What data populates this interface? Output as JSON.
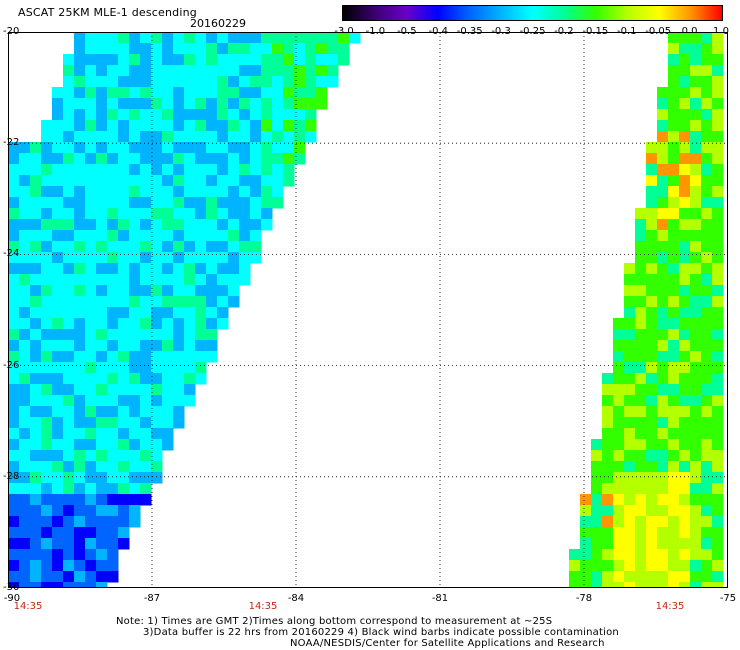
{
  "header": {
    "title": "ASCAT 25KM MLE-1 descending",
    "date": "20160229"
  },
  "colorbar": {
    "labels": [
      "-3.0",
      "-1.0",
      "-0.5",
      "-0.4",
      "-0.35",
      "-0.3",
      "-0.25",
      "-0.2",
      "-0.15",
      "-0.1",
      "-0.05",
      "0.0",
      "1.0"
    ],
    "colors": [
      "#000000",
      "#3a006e",
      "#6a00c8",
      "#0000ff",
      "#0064ff",
      "#00b4ff",
      "#00ffff",
      "#00ff96",
      "#32ff00",
      "#b4ff00",
      "#ffff00",
      "#ff9600",
      "#ff0000"
    ]
  },
  "map": {
    "lat_labels": [
      "-20",
      "-22",
      "-24",
      "-26",
      "-28",
      "-30"
    ],
    "lon_labels": [
      "-90",
      "-87",
      "-84",
      "-81",
      "-78",
      "-75"
    ],
    "swath_times": [
      "14:35",
      "14:35",
      "14:35"
    ]
  },
  "notes": {
    "line1": "Note: 1) Times are GMT 2)Times along bottom correspond to measurement at ~25S",
    "line2": "3)Data buffer is 22 hrs from 20160229 4) Black wind barbs indicate possible contamination",
    "line3": "NOAA/NESDIS/Center for Satellite Applications and Research"
  }
}
